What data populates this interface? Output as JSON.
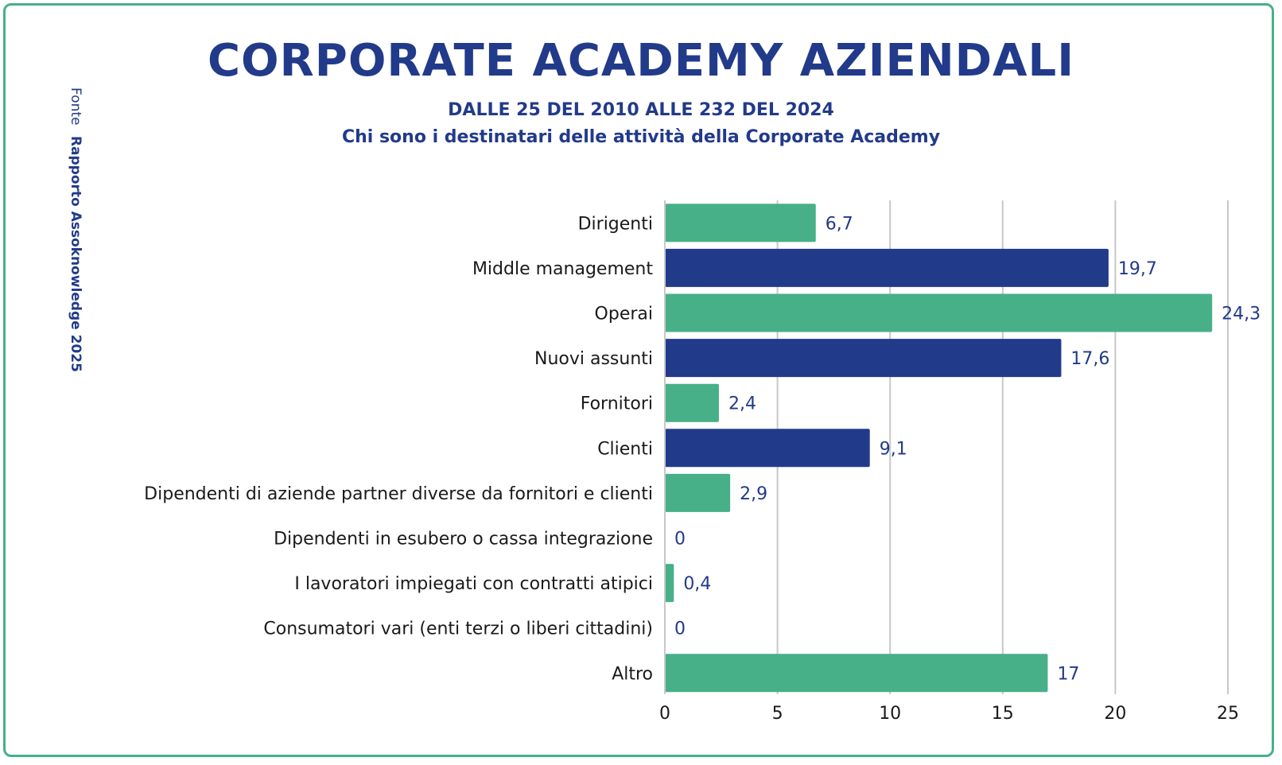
{
  "header": {
    "title": "CORPORATE ACADEMY AZIENDALI",
    "subtitle_1": "DALLE 25 DEL 2010 ALLE 232 DEL 2024",
    "subtitle_2": "Chi sono i destinatari delle attività della Corporate Academy"
  },
  "source": {
    "label": "Fonte",
    "value": "Rapporto Assoknowledge 2025"
  },
  "colors": {
    "green": "#47b088",
    "navy": "#223a8a",
    "frame": "#47b088"
  },
  "chart_data": {
    "type": "bar",
    "orientation": "horizontal",
    "categories": [
      "Dirigenti",
      "Middle management",
      "Operai",
      "Nuovi assunti",
      "Fornitori",
      "Clienti",
      "Dipendenti di aziende partner diverse da fornitori e clienti",
      "Dipendenti in esubero o cassa integrazione",
      "I lavoratori impiegati con contratti atipici",
      "Consumatori vari (enti terzi o liberi cittadini)",
      "Altro"
    ],
    "values": [
      6.7,
      19.7,
      24.3,
      17.6,
      2.4,
      9.1,
      2.9,
      0,
      0.4,
      0,
      17
    ],
    "value_labels": [
      "6,7",
      "19,7",
      "24,3",
      "17,6",
      "2,4",
      "9,1",
      "2,9",
      "0",
      "0,4",
      "0",
      "17"
    ],
    "bar_colors": [
      "green",
      "navy",
      "green",
      "navy",
      "green",
      "navy",
      "green",
      "green",
      "green",
      "green",
      "green"
    ],
    "xlim": [
      0,
      25
    ],
    "x_ticks": [
      "0",
      "5",
      "10",
      "15",
      "20",
      "25"
    ],
    "x_tick_values": [
      0,
      5,
      10,
      15,
      20,
      25
    ],
    "grid": true,
    "legend": "none",
    "xlabel": "",
    "ylabel": ""
  }
}
